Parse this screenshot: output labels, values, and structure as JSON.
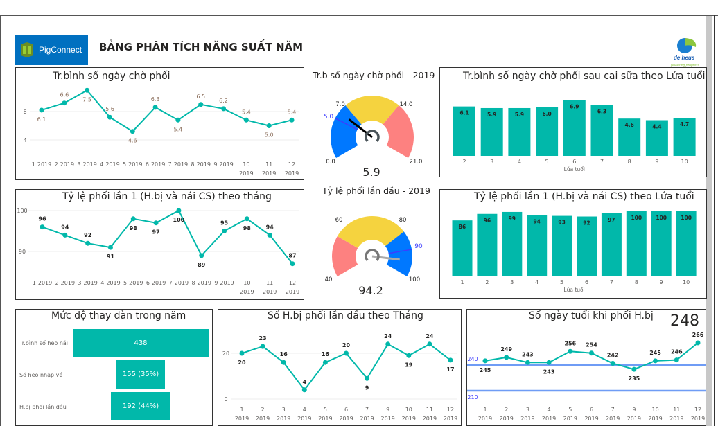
{
  "header": {
    "logo_text": "PigConnect",
    "title": "BẢNG PHÂN TÍCH NĂNG SUẤT NĂM",
    "partner_logo_text": "de heus",
    "partner_tagline": "powering progress"
  },
  "colors": {
    "teal": "#01b8aa",
    "gauge_blue": "#0078ff",
    "gauge_yellow": "#f5d33f",
    "gauge_red": "#fd8180",
    "target_line": "#3d3dff",
    "reference_line": "#6f9cf5"
  },
  "chart_data": [
    {
      "type": "line",
      "title": "Tr.bình số ngày chờ phối",
      "x_months": [
        "1",
        "2",
        "3",
        "4",
        "5",
        "6",
        "7",
        "8",
        "9",
        "10",
        "11",
        "12"
      ],
      "year": "2019",
      "values": [
        6.1,
        6.6,
        7.5,
        5.6,
        4.6,
        6.3,
        5.4,
        6.5,
        6.2,
        5.4,
        5.0,
        5.4
      ],
      "value_labels": [
        "6.1",
        "6.6",
        "7.5",
        "5.6",
        "4.6",
        "6.3",
        "5.4",
        "6.5",
        "6.2",
        "5.4",
        "5.0",
        "5.4"
      ],
      "y_ticks": [
        "4",
        "6"
      ],
      "grid": true
    },
    {
      "type": "line",
      "title": "Tỷ lệ phối lần 1 (H.bị và nái CS) theo tháng",
      "x_months": [
        "1",
        "2",
        "3",
        "4",
        "5",
        "6",
        "7",
        "8",
        "9",
        "10",
        "11",
        "12"
      ],
      "year": "2019",
      "values": [
        96,
        94,
        92,
        91,
        98,
        97,
        100,
        89,
        95,
        98,
        94,
        87
      ],
      "value_labels": [
        "96",
        "94",
        "92",
        "91",
        "98",
        "97",
        "100",
        "89",
        "95",
        "98",
        "94",
        "87"
      ],
      "y_ticks": [
        "90",
        "100"
      ],
      "grid": true
    },
    {
      "type": "gauge",
      "title": "Tr.b số ngày chờ phối - 2019",
      "min": 0,
      "max": 21,
      "value": 5.9,
      "value_label": "5.9",
      "target": 5.0,
      "bands": [
        {
          "from": 0,
          "to": 7,
          "color": "#0078ff"
        },
        {
          "from": 7,
          "to": 14,
          "color": "#f5d33f"
        },
        {
          "from": 14,
          "to": 21,
          "color": "#fd8180"
        }
      ],
      "labels": [
        "0.0",
        "7.0",
        "14.0",
        "21.0"
      ],
      "target_label": "5.0"
    },
    {
      "type": "gauge",
      "title": "Tỷ lệ phối lần đầu - 2019",
      "min": 40,
      "max": 100,
      "value": 94.2,
      "value_label": "94.2",
      "target": 90,
      "bands": [
        {
          "from": 40,
          "to": 55,
          "color": "#fd8180"
        },
        {
          "from": 55,
          "to": 83,
          "color": "#f5d33f"
        },
        {
          "from": 83,
          "to": 100,
          "color": "#0078ff"
        }
      ],
      "labels": [
        "40",
        "60",
        "80",
        "100"
      ],
      "target_label": "90"
    },
    {
      "type": "bar",
      "title": "Tr.bình số ngày chờ phối sau cai sữa theo Lứa tuổi",
      "xlabel": "Lứa tuổi",
      "categories": [
        "2",
        "3",
        "4",
        "5",
        "6",
        "7",
        "8",
        "9",
        "10"
      ],
      "values": [
        6.1,
        5.9,
        5.9,
        6.0,
        6.9,
        6.3,
        4.6,
        4.4,
        4.7
      ],
      "value_labels": [
        "6.1",
        "5.9",
        "5.9",
        "6.0",
        "6.9",
        "6.3",
        "4.6",
        "4.4",
        "4.7"
      ]
    },
    {
      "type": "bar",
      "title": "Tỷ lệ phối lần 1 (H.bị và nái CS) theo Lứa tuổi",
      "xlabel": "Lứa tuổi",
      "categories": [
        "1",
        "2",
        "3",
        "4",
        "5",
        "6",
        "7",
        "8",
        "9",
        "10"
      ],
      "values": [
        86,
        96,
        99,
        94,
        93,
        92,
        97,
        100,
        100,
        100
      ],
      "value_labels": [
        "86",
        "96",
        "99",
        "94",
        "93",
        "92",
        "97",
        "100",
        "100",
        "100"
      ]
    },
    {
      "type": "funnel",
      "title": "Mức độ thay đàn trong năm",
      "categories": [
        "Tr.bình số heo nái",
        "Số heo nhập về",
        "H.bị phối lần đầu"
      ],
      "values": [
        438,
        155,
        192
      ],
      "value_labels": [
        "438",
        "155 (35%)",
        "192 (44%)"
      ]
    },
    {
      "type": "line",
      "title": "Số H.bị phối lần đầu theo Tháng",
      "x_months": [
        "1",
        "2",
        "3",
        "4",
        "5",
        "6",
        "7",
        "9",
        "10",
        "11",
        "12"
      ],
      "year": "2019",
      "values": [
        20,
        23,
        16,
        4,
        16,
        20,
        9,
        24,
        19,
        24,
        17
      ],
      "value_labels": [
        "20",
        "23",
        "16",
        "4",
        "16",
        "20",
        "9",
        "24",
        "19",
        "24",
        "17"
      ],
      "y_ticks": [
        "0",
        "20"
      ],
      "grid": true
    },
    {
      "type": "line",
      "title": "Số ngày tuổi khi phối H.bị",
      "kpi": "248",
      "x_months": [
        "1",
        "2",
        "3",
        "4",
        "5",
        "6",
        "7",
        "9",
        "10",
        "11",
        "12"
      ],
      "year": "2019",
      "values": [
        245,
        249,
        243,
        243,
        256,
        254,
        242,
        235,
        245,
        246,
        266
      ],
      "value_labels": [
        "245",
        "249",
        "243",
        "243",
        "256",
        "254",
        "242",
        "235",
        "245",
        "246",
        "266"
      ],
      "reference_lines": [
        {
          "value": 240,
          "label": "240"
        },
        {
          "value": 210,
          "label": "210"
        }
      ]
    }
  ]
}
